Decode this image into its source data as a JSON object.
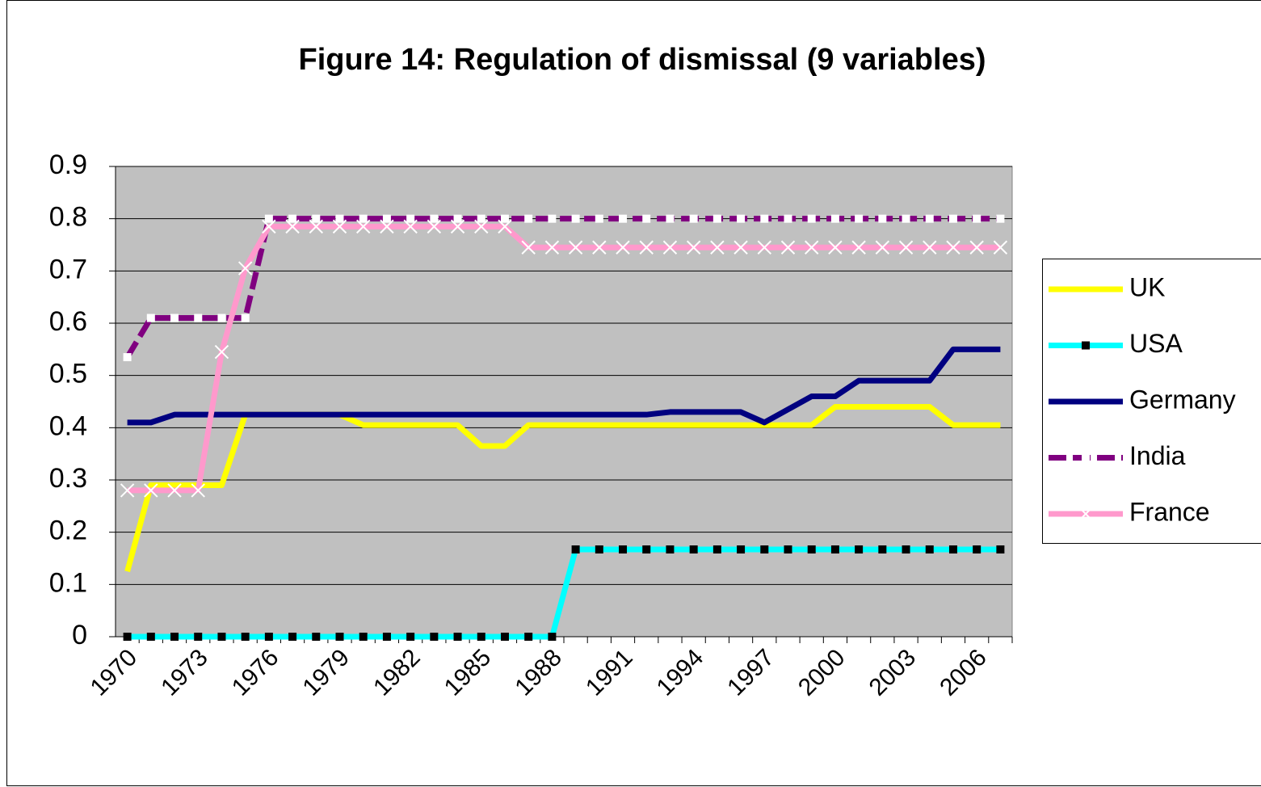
{
  "chart_data": {
    "type": "line",
    "title": "Figure 14: Regulation of dismissal (9 variables)",
    "categories": [
      "1970",
      null,
      null,
      "1973",
      null,
      null,
      "1976",
      null,
      null,
      "1979",
      null,
      null,
      "1982",
      null,
      null,
      "1985",
      null,
      null,
      "1988",
      null,
      null,
      "1991",
      null,
      null,
      "1994",
      null,
      null,
      "1997",
      null,
      null,
      "2000",
      null,
      null,
      "2003",
      null,
      null,
      "2006",
      null
    ],
    "series": [
      {
        "name": "UK",
        "color": "#ffff00",
        "values": [
          0.125,
          0.29,
          0.29,
          0.29,
          0.29,
          0.425,
          0.425,
          0.425,
          0.425,
          0.425,
          0.405,
          0.405,
          0.405,
          0.405,
          0.405,
          0.365,
          0.365,
          0.405,
          0.405,
          0.405,
          0.405,
          0.405,
          0.405,
          0.405,
          0.405,
          0.405,
          0.405,
          0.405,
          0.405,
          0.405,
          0.44,
          0.44,
          0.44,
          0.44,
          0.44,
          0.405,
          0.405,
          0.405
        ]
      },
      {
        "name": "USA",
        "color": "#00ffff",
        "marker": "square",
        "marker_color": "#000000",
        "values": [
          0,
          0,
          0,
          0,
          0,
          0,
          0,
          0,
          0,
          0,
          0,
          0,
          0,
          0,
          0,
          0,
          0,
          0,
          0,
          0.167,
          0.167,
          0.167,
          0.167,
          0.167,
          0.167,
          0.167,
          0.167,
          0.167,
          0.167,
          0.167,
          0.167,
          0.167,
          0.167,
          0.167,
          0.167,
          0.167,
          0.167,
          0.167
        ]
      },
      {
        "name": "Germany",
        "color": "#000080",
        "values": [
          0.41,
          0.41,
          0.425,
          0.425,
          0.425,
          0.425,
          0.425,
          0.425,
          0.425,
          0.425,
          0.425,
          0.425,
          0.425,
          0.425,
          0.425,
          0.425,
          0.425,
          0.425,
          0.425,
          0.425,
          0.425,
          0.425,
          0.425,
          0.43,
          0.43,
          0.43,
          0.43,
          0.41,
          0.435,
          0.46,
          0.46,
          0.49,
          0.49,
          0.49,
          0.49,
          0.55,
          0.55,
          0.55
        ]
      },
      {
        "name": "India",
        "color": "#800080",
        "dash": true,
        "marker": "square",
        "marker_color": "#ffffff",
        "values": [
          0.535,
          0.61,
          0.61,
          0.61,
          0.61,
          0.61,
          0.8,
          0.8,
          0.8,
          0.8,
          0.8,
          0.8,
          0.8,
          0.8,
          0.8,
          0.8,
          0.8,
          0.8,
          0.8,
          0.8,
          0.8,
          0.8,
          0.8,
          0.8,
          0.8,
          0.8,
          0.8,
          0.8,
          0.8,
          0.8,
          0.8,
          0.8,
          0.8,
          0.8,
          0.8,
          0.8,
          0.8,
          0.8
        ]
      },
      {
        "name": "France",
        "color": "#ff99cc",
        "marker": "x",
        "marker_color": "#ffffff",
        "values": [
          0.28,
          0.28,
          0.28,
          0.28,
          0.545,
          0.705,
          0.785,
          0.785,
          0.785,
          0.785,
          0.785,
          0.785,
          0.785,
          0.785,
          0.785,
          0.785,
          0.785,
          0.745,
          0.745,
          0.745,
          0.745,
          0.745,
          0.745,
          0.745,
          0.745,
          0.745,
          0.745,
          0.745,
          0.745,
          0.745,
          0.745,
          0.745,
          0.745,
          0.745,
          0.745,
          0.745,
          0.745,
          0.745
        ]
      }
    ],
    "ylim": [
      0,
      0.9
    ],
    "yticks": [
      0,
      0.1,
      0.2,
      0.3,
      0.4,
      0.5,
      0.6,
      0.7,
      0.8,
      0.9
    ],
    "grid": true,
    "legend": "right"
  }
}
